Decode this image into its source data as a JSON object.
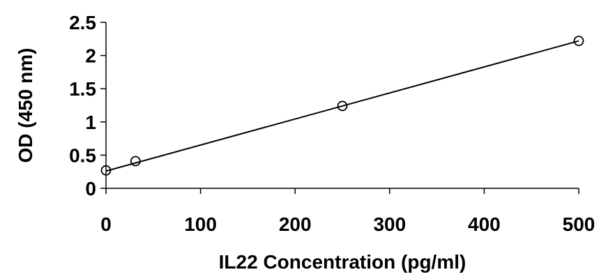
{
  "chart_data": {
    "type": "scatter",
    "xlabel": "IL22 Concentration (pg/ml)",
    "ylabel": "OD (450 nm)",
    "xlim": [
      0,
      500
    ],
    "ylim": [
      0,
      2.5
    ],
    "xticks": [
      "0",
      "100",
      "200",
      "300",
      "400",
      "500"
    ],
    "yticks": [
      "0",
      "0.5",
      "1",
      "1.5",
      "2",
      "2.5"
    ],
    "grid": false,
    "legend": "none",
    "series": [
      {
        "points": [
          {
            "x": 0,
            "y": 0.27
          },
          {
            "x": 31.25,
            "y": 0.41
          },
          {
            "x": 250,
            "y": 1.24
          },
          {
            "x": 500,
            "y": 2.22
          }
        ],
        "marker": "open-circle",
        "color": "#000000"
      }
    ],
    "trendline": {
      "type": "linear",
      "from": {
        "x": 0,
        "y": 0.26
      },
      "to": {
        "x": 500,
        "y": 2.22
      },
      "color": "#000000"
    }
  }
}
